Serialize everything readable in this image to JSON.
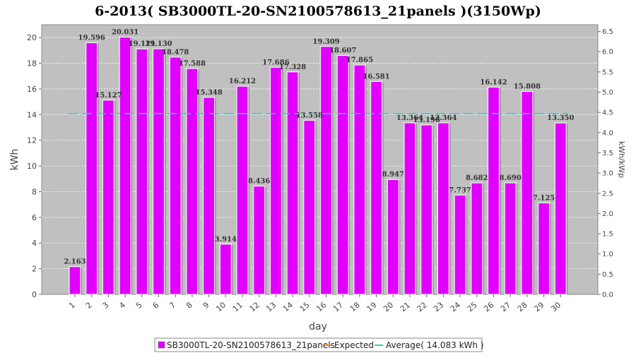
{
  "chart_data": {
    "type": "bar",
    "title": "6-2013( SB3000TL-20-SN2100578613_21panels )(3150Wp)",
    "xlabel": "day",
    "ylabel": "kWh",
    "y2label": "kWh/kWp",
    "categories": [
      "1",
      "2",
      "3",
      "4",
      "5",
      "6",
      "7",
      "8",
      "9",
      "10",
      "11",
      "12",
      "13",
      "14",
      "15",
      "16",
      "17",
      "18",
      "19",
      "20",
      "21",
      "22",
      "23",
      "24",
      "25",
      "26",
      "27",
      "28",
      "29",
      "30"
    ],
    "series": [
      {
        "name": "SB3000TL-20-SN2100578613_21panels",
        "color": "#e100ff",
        "values": [
          2.163,
          19.596,
          15.127,
          20.031,
          19.121,
          19.13,
          18.478,
          17.588,
          15.348,
          3.914,
          16.212,
          8.436,
          17.686,
          17.328,
          13.558,
          19.309,
          18.607,
          17.865,
          16.581,
          8.947,
          13.364,
          13.196,
          13.364,
          7.737,
          8.682,
          16.142,
          8.69,
          15.808,
          7.125,
          13.35
        ],
        "labels": [
          "2.163",
          "19.596",
          "15.127",
          "20.031",
          "19.121",
          "19.130",
          "18.478",
          "17.588",
          "15.348",
          "3.914",
          "16.212",
          "8.436",
          "17.686",
          "17.328",
          "13.558",
          "19.309",
          "18.607",
          "17.865",
          "16.581",
          "8.947",
          "13.364",
          "13.196",
          "13.364",
          "7.737",
          "8.682",
          "16.142",
          "8.690",
          "15.808",
          "7.125",
          "13.350"
        ]
      }
    ],
    "average": {
      "name": "Average( 14.083 kWh )",
      "value": 14.083,
      "color": "#33cccc"
    },
    "expected": {
      "name": "Expected",
      "color": "#ff8c1a"
    },
    "ylim": [
      0,
      21
    ],
    "yticks": [
      "0",
      "2",
      "4",
      "6",
      "8",
      "10",
      "12",
      "14",
      "16",
      "18",
      "20"
    ],
    "y2ticks": [
      "0.0",
      "0.5",
      "1.0",
      "1.5",
      "2.0",
      "2.5",
      "3.0",
      "3.5",
      "4.0",
      "4.5",
      "5.0",
      "5.5",
      "6.0",
      "6.5"
    ],
    "y2step": 0.5,
    "y2scale": 3.15,
    "grid": true,
    "legend_position": "bottom"
  }
}
